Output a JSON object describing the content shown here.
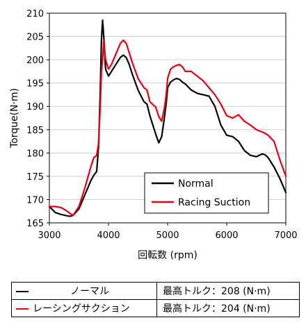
{
  "chart_data": {
    "type": "line",
    "title": "",
    "xlabel": "回転数 (rpm)",
    "ylabel": "Torque(N·m)",
    "xlim": [
      3000,
      7000
    ],
    "ylim": [
      165,
      210
    ],
    "xticks": [
      3000,
      4000,
      5000,
      6000,
      7000
    ],
    "yticks": [
      165,
      170,
      175,
      180,
      185,
      190,
      195,
      200,
      205,
      210
    ],
    "grid": "horizontal",
    "legend_position": "lower-right",
    "series": [
      {
        "name": "Normal",
        "color": "#000000",
        "x": [
          3000,
          3100,
          3200,
          3300,
          3350,
          3400,
          3500,
          3600,
          3700,
          3750,
          3800,
          3830,
          3860,
          3880,
          3900,
          3920,
          3950,
          4000,
          4050,
          4100,
          4200,
          4250,
          4300,
          4350,
          4400,
          4500,
          4600,
          4650,
          4700,
          4800,
          4850,
          4900,
          4950,
          4980,
          5000,
          5050,
          5100,
          5150,
          5200,
          5250,
          5300,
          5400,
          5500,
          5600,
          5700,
          5800,
          5900,
          6000,
          6100,
          6200,
          6300,
          6400,
          6500,
          6600,
          6650,
          6700,
          6800,
          6900,
          7000
        ],
        "y": [
          168.5,
          167.2,
          166.8,
          166.5,
          166.4,
          166.6,
          168,
          171,
          174,
          175.2,
          176,
          181,
          193,
          204,
          208.5,
          205,
          198,
          196.5,
          197.5,
          198.5,
          200.5,
          201,
          200.5,
          199,
          197,
          193.5,
          191,
          190.5,
          188,
          184,
          182.2,
          183.5,
          188,
          191,
          194,
          195.2,
          195.7,
          196,
          195.8,
          195.2,
          194.8,
          193.5,
          192.8,
          192.5,
          192.2,
          190,
          186,
          183.8,
          183.5,
          182.5,
          180.5,
          179.5,
          179.2,
          179.8,
          179.6,
          179,
          177,
          174.5,
          171.5
        ]
      },
      {
        "name": "Racing Suction",
        "color": "#e60012",
        "x": [
          3000,
          3100,
          3200,
          3300,
          3350,
          3400,
          3500,
          3600,
          3700,
          3750,
          3800,
          3830,
          3860,
          3880,
          3900,
          3920,
          3950,
          4000,
          4050,
          4100,
          4200,
          4250,
          4300,
          4350,
          4400,
          4500,
          4600,
          4650,
          4700,
          4800,
          4850,
          4900,
          4950,
          4980,
          5000,
          5050,
          5100,
          5150,
          5200,
          5250,
          5300,
          5400,
          5500,
          5600,
          5700,
          5800,
          5900,
          6000,
          6100,
          6200,
          6300,
          6400,
          6500,
          6600,
          6650,
          6700,
          6800,
          6900,
          7000
        ],
        "y": [
          168.5,
          168.5,
          168.3,
          167.5,
          167,
          166.6,
          168.5,
          172.5,
          177,
          179,
          179.5,
          182,
          190,
          197.5,
          200,
          204,
          200,
          198,
          199,
          200.5,
          203.5,
          204.2,
          203.5,
          201.5,
          199.5,
          196,
          194,
          193.5,
          191,
          189.8,
          187.8,
          186.8,
          190,
          193,
          196,
          198,
          198.5,
          198.8,
          199,
          198.5,
          197.5,
          197.5,
          196.5,
          195.5,
          194,
          192.5,
          190.5,
          188,
          187.5,
          188.2,
          186.8,
          186,
          185,
          184.5,
          184.2,
          183.8,
          182.5,
          178.5,
          175
        ]
      }
    ]
  },
  "summary_table": {
    "rows": [
      {
        "name": "ノーマル",
        "color": "#000000",
        "max": "最高トルク：208 (N·m)"
      },
      {
        "name": "レーシングサクション",
        "color": "#e60012",
        "max": "最高トルク：204 (N·m)"
      }
    ]
  }
}
